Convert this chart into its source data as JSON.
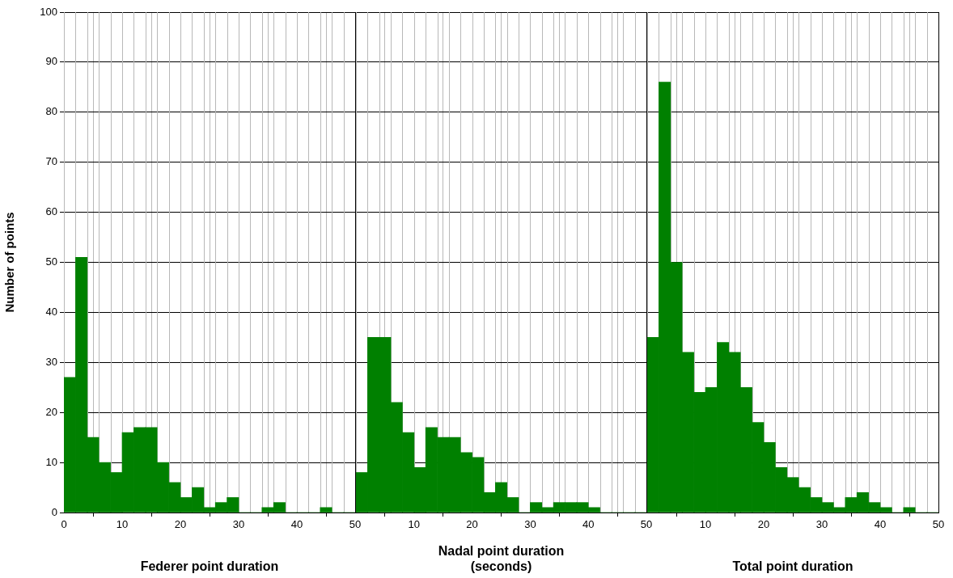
{
  "chart_data": [
    {
      "type": "histogram",
      "xlabel": "Federer point duration",
      "ylabel": "Number of points",
      "color": "#008000",
      "bins": [
        0,
        2,
        4,
        6,
        8,
        10,
        12,
        14,
        16,
        18,
        20,
        22,
        24,
        26,
        28,
        30,
        32,
        34,
        36,
        38,
        40,
        42,
        44,
        46,
        48,
        50
      ],
      "values": [
        27,
        51,
        15,
        10,
        8,
        16,
        17,
        17,
        10,
        6,
        3,
        5,
        1,
        2,
        3,
        0,
        0,
        1,
        2,
        0,
        0,
        0,
        1,
        0,
        0
      ],
      "xlim": [
        0,
        50
      ],
      "xticks": [
        0,
        10,
        20,
        30,
        40,
        50
      ],
      "ylim": [
        0,
        100
      ],
      "yticks": [
        0,
        10,
        20,
        30,
        40,
        50,
        60,
        70,
        80,
        90,
        100
      ],
      "grid": true
    },
    {
      "type": "histogram",
      "xlabel": "Nadal point duration\n(seconds)",
      "color": "#008000",
      "bins": [
        0,
        2,
        4,
        6,
        8,
        10,
        12,
        14,
        16,
        18,
        20,
        22,
        24,
        26,
        28,
        30,
        32,
        34,
        36,
        38,
        40,
        42,
        44,
        46,
        48,
        50
      ],
      "values": [
        8,
        35,
        35,
        22,
        16,
        9,
        17,
        15,
        15,
        12,
        11,
        4,
        6,
        3,
        0,
        2,
        1,
        2,
        2,
        2,
        1,
        0,
        0,
        0,
        0
      ],
      "xlim": [
        0,
        50
      ],
      "xticks": [
        {
          "value": 0,
          "label": null
        },
        10,
        20,
        30,
        40,
        50
      ],
      "ylim": [
        0,
        100
      ],
      "yticks": [
        0,
        10,
        20,
        30,
        40,
        50,
        60,
        70,
        80,
        90,
        100
      ],
      "grid": true,
      "tick_labels": "x"
    },
    {
      "type": "histogram",
      "xlabel": "Total point duration",
      "color": "#008000",
      "bins": [
        0,
        2,
        4,
        6,
        8,
        10,
        12,
        14,
        16,
        18,
        20,
        22,
        24,
        26,
        28,
        30,
        32,
        34,
        36,
        38,
        40,
        42,
        44,
        46,
        48,
        50
      ],
      "values": [
        35,
        86,
        50,
        32,
        24,
        25,
        34,
        32,
        25,
        18,
        14,
        9,
        7,
        5,
        3,
        2,
        1,
        3,
        4,
        2,
        1,
        0,
        1,
        0,
        0
      ],
      "xlim": [
        0,
        50
      ],
      "xticks": [
        {
          "value": 0,
          "label": null
        },
        10,
        20,
        30,
        40,
        50
      ],
      "ylim": [
        0,
        100
      ],
      "yticks": [
        0,
        10,
        20,
        30,
        40,
        50,
        60,
        70,
        80,
        90,
        100
      ],
      "grid": true,
      "tick_labels": "x"
    }
  ]
}
